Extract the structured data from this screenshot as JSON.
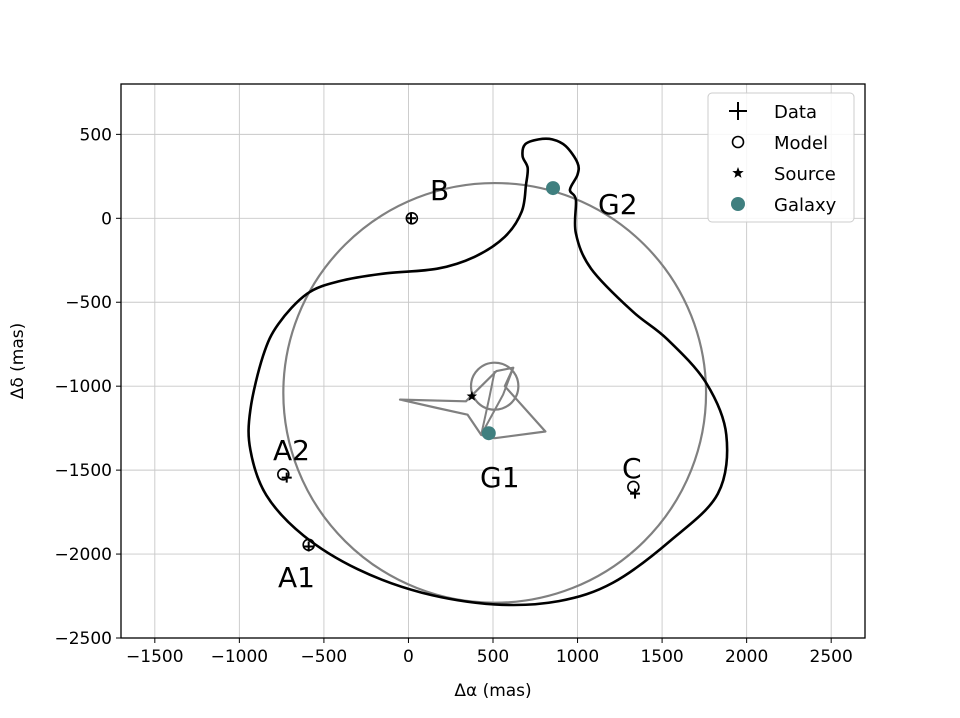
{
  "chart_data": {
    "type": "scatter",
    "title": "",
    "xlabel": "Δα (mas)",
    "ylabel": "Δδ (mas)",
    "xlim": [
      -1700,
      2700
    ],
    "ylim": [
      -2500,
      800
    ],
    "xticks": [
      -1500,
      -1000,
      -500,
      0,
      500,
      1000,
      1500,
      2000,
      2500
    ],
    "yticks": [
      500,
      0,
      -500,
      -1000,
      -1500,
      -2000,
      -2500
    ],
    "xtick_labels": [
      "−1500",
      "−1000",
      "−500",
      "0",
      "500",
      "1000",
      "1500",
      "2000",
      "2500"
    ],
    "ytick_labels": [
      "500",
      "0",
      "−500",
      "−1000",
      "−1500",
      "−2000",
      "−2500"
    ],
    "grid": true,
    "legend_position": "top-right",
    "legend": [
      {
        "label": "Data",
        "marker": "plus"
      },
      {
        "label": "Model",
        "marker": "open-circle"
      },
      {
        "label": "Source",
        "marker": "star"
      },
      {
        "label": "Galaxy",
        "marker": "filled-circle"
      }
    ],
    "colors": {
      "galaxy": "#3f7f7f",
      "caustic": "#808080",
      "critical_curve": "#000000",
      "grid": "#c8c8c8"
    },
    "images": [
      {
        "name": "A1",
        "data": [
          -590,
          -1955
        ],
        "model": [
          -590,
          -1945
        ]
      },
      {
        "name": "A2",
        "data": [
          -720,
          -1545
        ],
        "model": [
          -740,
          -1525
        ]
      },
      {
        "name": "B",
        "data": [
          15,
          0
        ],
        "model": [
          20,
          0
        ]
      },
      {
        "name": "C",
        "data": [
          1340,
          -1640
        ],
        "model": [
          1330,
          -1600
        ]
      }
    ],
    "source": [
      375,
      -1060
    ],
    "galaxies": [
      {
        "name": "G1",
        "position": [
          475,
          -1280
        ]
      },
      {
        "name": "G2",
        "position": [
          855,
          180
        ]
      }
    ],
    "critical_curve": [
      [
        -935,
        -1140
      ],
      [
        -860,
        -820
      ],
      [
        -770,
        -630
      ],
      [
        -600,
        -450
      ],
      [
        -410,
        -375
      ],
      [
        -150,
        -330
      ],
      [
        170,
        -300
      ],
      [
        390,
        -230
      ],
      [
        570,
        -110
      ],
      [
        670,
        40
      ],
      [
        695,
        200
      ],
      [
        705,
        300
      ],
      [
        675,
        370
      ],
      [
        690,
        440
      ],
      [
        770,
        470
      ],
      [
        850,
        470
      ],
      [
        930,
        430
      ],
      [
        1000,
        330
      ],
      [
        1000,
        260
      ],
      [
        955,
        170
      ],
      [
        990,
        110
      ],
      [
        990,
        -90
      ],
      [
        1080,
        -300
      ],
      [
        1320,
        -550
      ],
      [
        1530,
        -720
      ],
      [
        1760,
        -980
      ],
      [
        1880,
        -1290
      ],
      [
        1830,
        -1640
      ],
      [
        1550,
        -1920
      ],
      [
        1210,
        -2170
      ],
      [
        890,
        -2280
      ],
      [
        510,
        -2300
      ],
      [
        80,
        -2230
      ],
      [
        -300,
        -2090
      ],
      [
        -620,
        -1890
      ],
      [
        -840,
        -1650
      ],
      [
        -935,
        -1380
      ]
    ],
    "caustic_circle": {
      "center": [
        510,
        -1040
      ],
      "radius": 1250
    },
    "caustic_small_circle": {
      "center": [
        510,
        -1000
      ],
      "radius": 140
    },
    "caustic_astroid": [
      [
        -50,
        -1080
      ],
      [
        340,
        -1090
      ],
      [
        520,
        -910
      ],
      [
        620,
        -890
      ],
      [
        570,
        -1000
      ],
      [
        810,
        -1270
      ],
      [
        510,
        -1310
      ],
      [
        430,
        -1290
      ],
      [
        350,
        -1170
      ],
      [
        170,
        -1130
      ]
    ],
    "caustic_astroid_inner": [
      [
        510,
        -910
      ],
      [
        480,
        -1060
      ],
      [
        430,
        -1290
      ],
      [
        560,
        -1050
      ],
      [
        620,
        -890
      ]
    ]
  }
}
